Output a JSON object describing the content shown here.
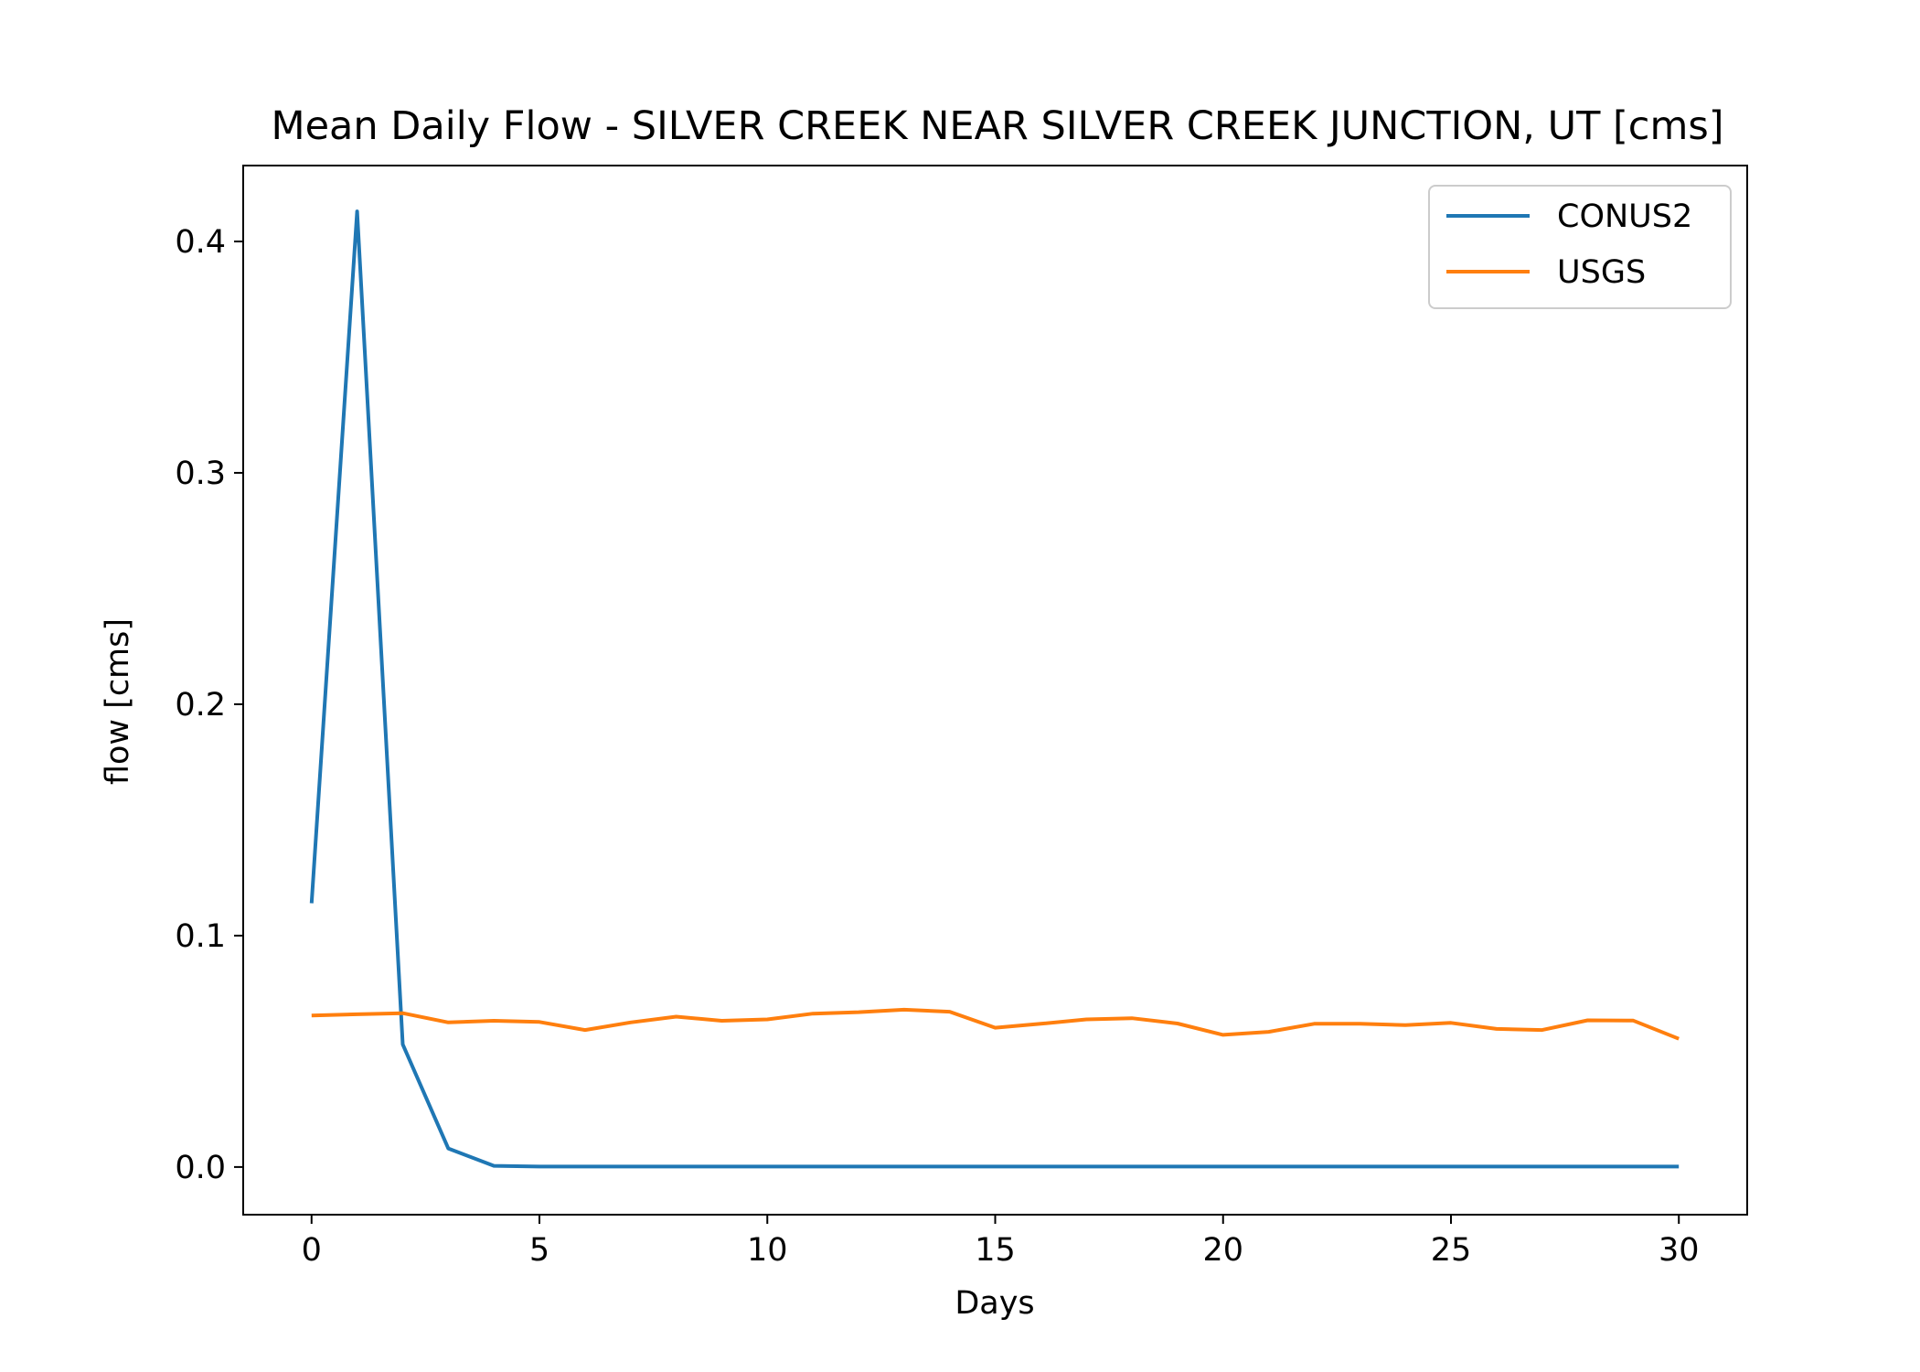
{
  "chart_data": {
    "type": "line",
    "title": "Mean Daily Flow - SILVER CREEK NEAR SILVER CREEK JUNCTION, UT [cms]",
    "xlabel": "Days",
    "ylabel": "flow [cms]",
    "xlim": [
      -1.5,
      31.5
    ],
    "ylim": [
      -0.0206,
      0.4328
    ],
    "xticks": [
      0,
      5,
      10,
      15,
      20,
      25,
      30
    ],
    "xtick_labels": [
      "0",
      "5",
      "10",
      "15",
      "20",
      "25",
      "30"
    ],
    "yticks": [
      0.0,
      0.1,
      0.2,
      0.3,
      0.4
    ],
    "ytick_labels": [
      "0.0",
      "0.1",
      "0.2",
      "0.3",
      "0.4"
    ],
    "grid": false,
    "legend_position": "top-right",
    "x": [
      0,
      1,
      2,
      3,
      4,
      5,
      6,
      7,
      8,
      9,
      10,
      11,
      12,
      13,
      14,
      15,
      16,
      17,
      18,
      19,
      20,
      21,
      22,
      23,
      24,
      25,
      26,
      27,
      28,
      29,
      30
    ],
    "series": [
      {
        "name": "CONUS2",
        "color": "#1f77b4",
        "values": [
          0.114,
          0.413,
          0.053,
          0.008,
          0.0005,
          0.0002,
          0.0002,
          0.0002,
          0.0002,
          0.0002,
          0.0002,
          0.0002,
          0.0002,
          0.0002,
          0.0002,
          0.0002,
          0.0002,
          0.0002,
          0.0002,
          0.0002,
          0.0002,
          0.0002,
          0.0002,
          0.0002,
          0.0002,
          0.0002,
          0.0002,
          0.0002,
          0.0002,
          0.0002,
          0.0002
        ]
      },
      {
        "name": "USGS",
        "color": "#ff7f0e",
        "values": [
          0.0655,
          0.066,
          0.0665,
          0.0625,
          0.0632,
          0.0627,
          0.0592,
          0.0625,
          0.065,
          0.0632,
          0.0638,
          0.0663,
          0.0669,
          0.068,
          0.0671,
          0.0602,
          0.0619,
          0.0638,
          0.0643,
          0.062,
          0.0571,
          0.0584,
          0.0619,
          0.0619,
          0.0613,
          0.0623,
          0.0597,
          0.0592,
          0.0634,
          0.0633,
          0.0554
        ]
      }
    ]
  }
}
